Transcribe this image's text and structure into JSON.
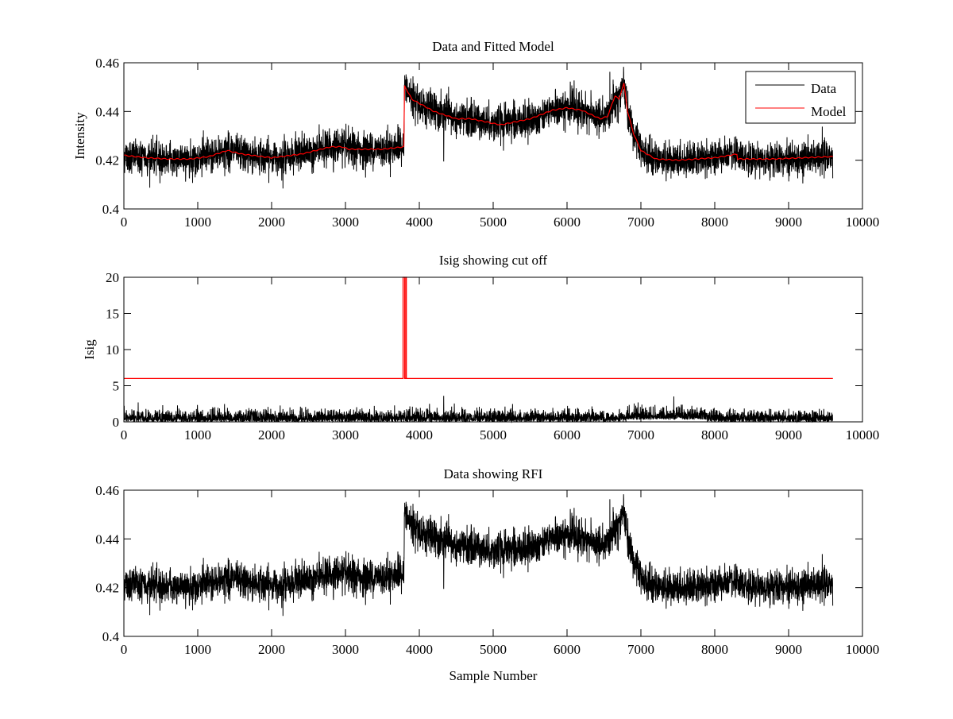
{
  "chart_data": [
    {
      "type": "line",
      "title": "Data and Fitted Model",
      "xlabel": "",
      "ylabel": "Intensity",
      "xlim": [
        0,
        10000
      ],
      "ylim": [
        0.4,
        0.46
      ],
      "xticks": [
        0,
        1000,
        2000,
        3000,
        4000,
        5000,
        6000,
        7000,
        8000,
        9000,
        10000
      ],
      "yticks": [
        "0.4",
        "0.42",
        "0.44",
        "0.46"
      ],
      "ytick_values": [
        0.4,
        0.42,
        0.44,
        0.46
      ],
      "legend": {
        "placement": "top-right",
        "entries": [
          {
            "label": "Data",
            "color": "#000000"
          },
          {
            "label": "Model",
            "color": "#ff0000"
          }
        ]
      },
      "n_samples": 9600,
      "data_noise_std": 0.0035,
      "series": [
        {
          "name": "Model",
          "color": "#ff0000",
          "points": [
            [
              0,
              0.422
            ],
            [
              300,
              0.421
            ],
            [
              600,
              0.4205
            ],
            [
              900,
              0.4205
            ],
            [
              1150,
              0.4215
            ],
            [
              1400,
              0.424
            ],
            [
              1600,
              0.4225
            ],
            [
              2000,
              0.421
            ],
            [
              2400,
              0.4225
            ],
            [
              2800,
              0.4255
            ],
            [
              2950,
              0.4255
            ],
            [
              3050,
              0.4245
            ],
            [
              3500,
              0.4245
            ],
            [
              3790,
              0.4255
            ],
            [
              3800,
              0.4505
            ],
            [
              3900,
              0.445
            ],
            [
              4200,
              0.44
            ],
            [
              4500,
              0.437
            ],
            [
              4700,
              0.437
            ],
            [
              5100,
              0.4345
            ],
            [
              5500,
              0.437
            ],
            [
              5800,
              0.4405
            ],
            [
              6000,
              0.4415
            ],
            [
              6200,
              0.4405
            ],
            [
              6450,
              0.437
            ],
            [
              6550,
              0.438
            ],
            [
              6650,
              0.4465
            ],
            [
              6700,
              0.445
            ],
            [
              6770,
              0.4515
            ],
            [
              6820,
              0.44
            ],
            [
              6900,
              0.431
            ],
            [
              7000,
              0.424
            ],
            [
              7200,
              0.4205
            ],
            [
              7500,
              0.42
            ],
            [
              8000,
              0.421
            ],
            [
              8300,
              0.4225
            ],
            [
              8310,
              0.4205
            ],
            [
              8800,
              0.4205
            ],
            [
              9600,
              0.4215
            ]
          ]
        },
        {
          "name": "Data",
          "color": "#000000",
          "description_of_values": "Model + noise"
        }
      ]
    },
    {
      "type": "line",
      "title": "Isig showing cut off",
      "xlabel": "",
      "ylabel": "Isig",
      "xlim": [
        0,
        10000
      ],
      "ylim": [
        0,
        20
      ],
      "xticks": [
        0,
        1000,
        2000,
        3000,
        4000,
        5000,
        6000,
        7000,
        8000,
        9000,
        10000
      ],
      "yticks": [
        "0",
        "5",
        "10",
        "15",
        "20"
      ],
      "ytick_values": [
        0,
        5,
        10,
        15,
        20
      ],
      "series": [
        {
          "name": "Cutoff",
          "color": "#ff0000",
          "points": [
            [
              0,
              6
            ],
            [
              3780,
              6
            ],
            [
              3780,
              20
            ],
            [
              3800,
              20
            ],
            [
              3800,
              6
            ],
            [
              3815,
              6
            ],
            [
              3815,
              20
            ],
            [
              3825,
              20
            ],
            [
              3825,
              6
            ],
            [
              9600,
              6
            ]
          ]
        },
        {
          "name": "Isig",
          "color": "#000000",
          "typical_range": [
            0,
            3.5
          ]
        }
      ]
    },
    {
      "type": "line",
      "title": "Data showing RFI",
      "xlabel": "Sample Number",
      "ylabel": "",
      "xlim": [
        0,
        10000
      ],
      "ylim": [
        0.4,
        0.46
      ],
      "xticks": [
        0,
        1000,
        2000,
        3000,
        4000,
        5000,
        6000,
        7000,
        8000,
        9000,
        10000
      ],
      "yticks": [
        "0.4",
        "0.42",
        "0.44",
        "0.46"
      ],
      "ytick_values": [
        0.4,
        0.42,
        0.44,
        0.46
      ],
      "series": [
        {
          "name": "Data",
          "color": "#000000"
        }
      ]
    }
  ]
}
